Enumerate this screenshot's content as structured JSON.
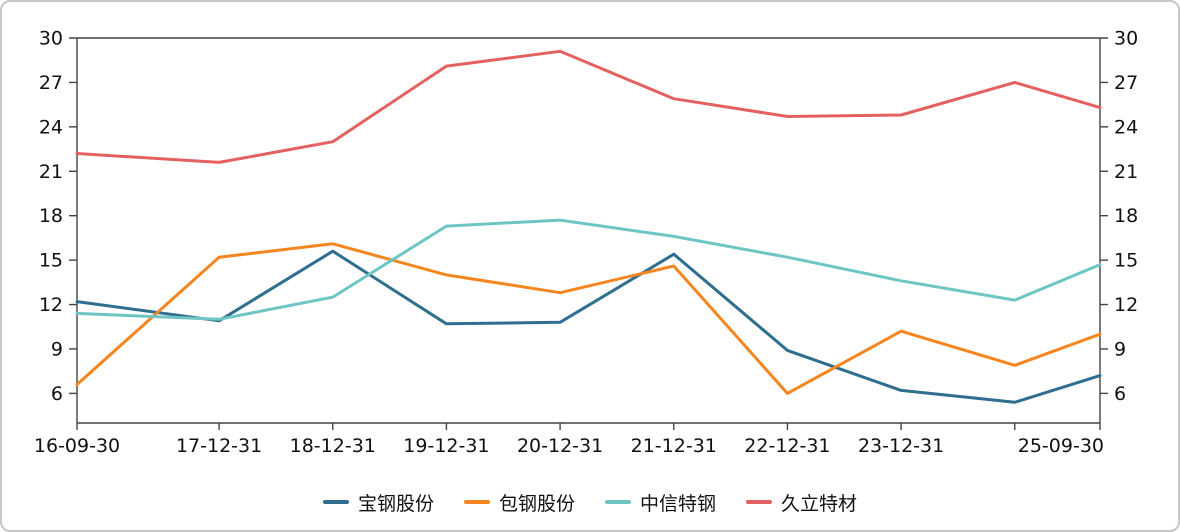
{
  "frame": {
    "border_color": "#c8c8c8",
    "background": "#ffffff"
  },
  "axis": {
    "line_color": "#444444",
    "label_color": "#111111"
  },
  "chart_data": {
    "type": "line",
    "title": "",
    "xlabel": "",
    "ylabel": "",
    "grid": false,
    "dual_y_axis": true,
    "legend_position": "bottom",
    "x_labels": [
      "16-09-30",
      "17-12-31",
      "18-12-31",
      "19-12-31",
      "20-12-31",
      "21-12-31",
      "22-12-31",
      "23-12-31",
      "",
      "25-09-30"
    ],
    "x_months": [
      0,
      15,
      27,
      39,
      51,
      63,
      75,
      87,
      99,
      108
    ],
    "y_ticks": [
      6,
      9,
      12,
      15,
      18,
      21,
      24,
      27,
      30
    ],
    "ylim": [
      4,
      30
    ],
    "series": [
      {
        "name": "宝钢股份",
        "color": "#2f6e8f",
        "values": [
          12.2,
          10.9,
          15.6,
          10.7,
          10.8,
          15.4,
          8.9,
          6.2,
          5.4,
          7.2
        ]
      },
      {
        "name": "包钢股份",
        "color": "#f5861f",
        "values": [
          6.6,
          15.2,
          16.1,
          14.0,
          12.8,
          14.6,
          6.0,
          10.2,
          7.9,
          10.0
        ]
      },
      {
        "name": "中信特钢",
        "color": "#6ec6c4",
        "values": [
          11.4,
          11.0,
          12.5,
          17.3,
          17.7,
          16.6,
          15.2,
          13.6,
          12.3,
          14.7
        ]
      },
      {
        "name": "久立特材",
        "color": "#e4615f",
        "values": [
          22.2,
          21.6,
          23.0,
          28.1,
          29.1,
          25.9,
          24.7,
          24.8,
          27.0,
          25.3
        ]
      }
    ]
  }
}
